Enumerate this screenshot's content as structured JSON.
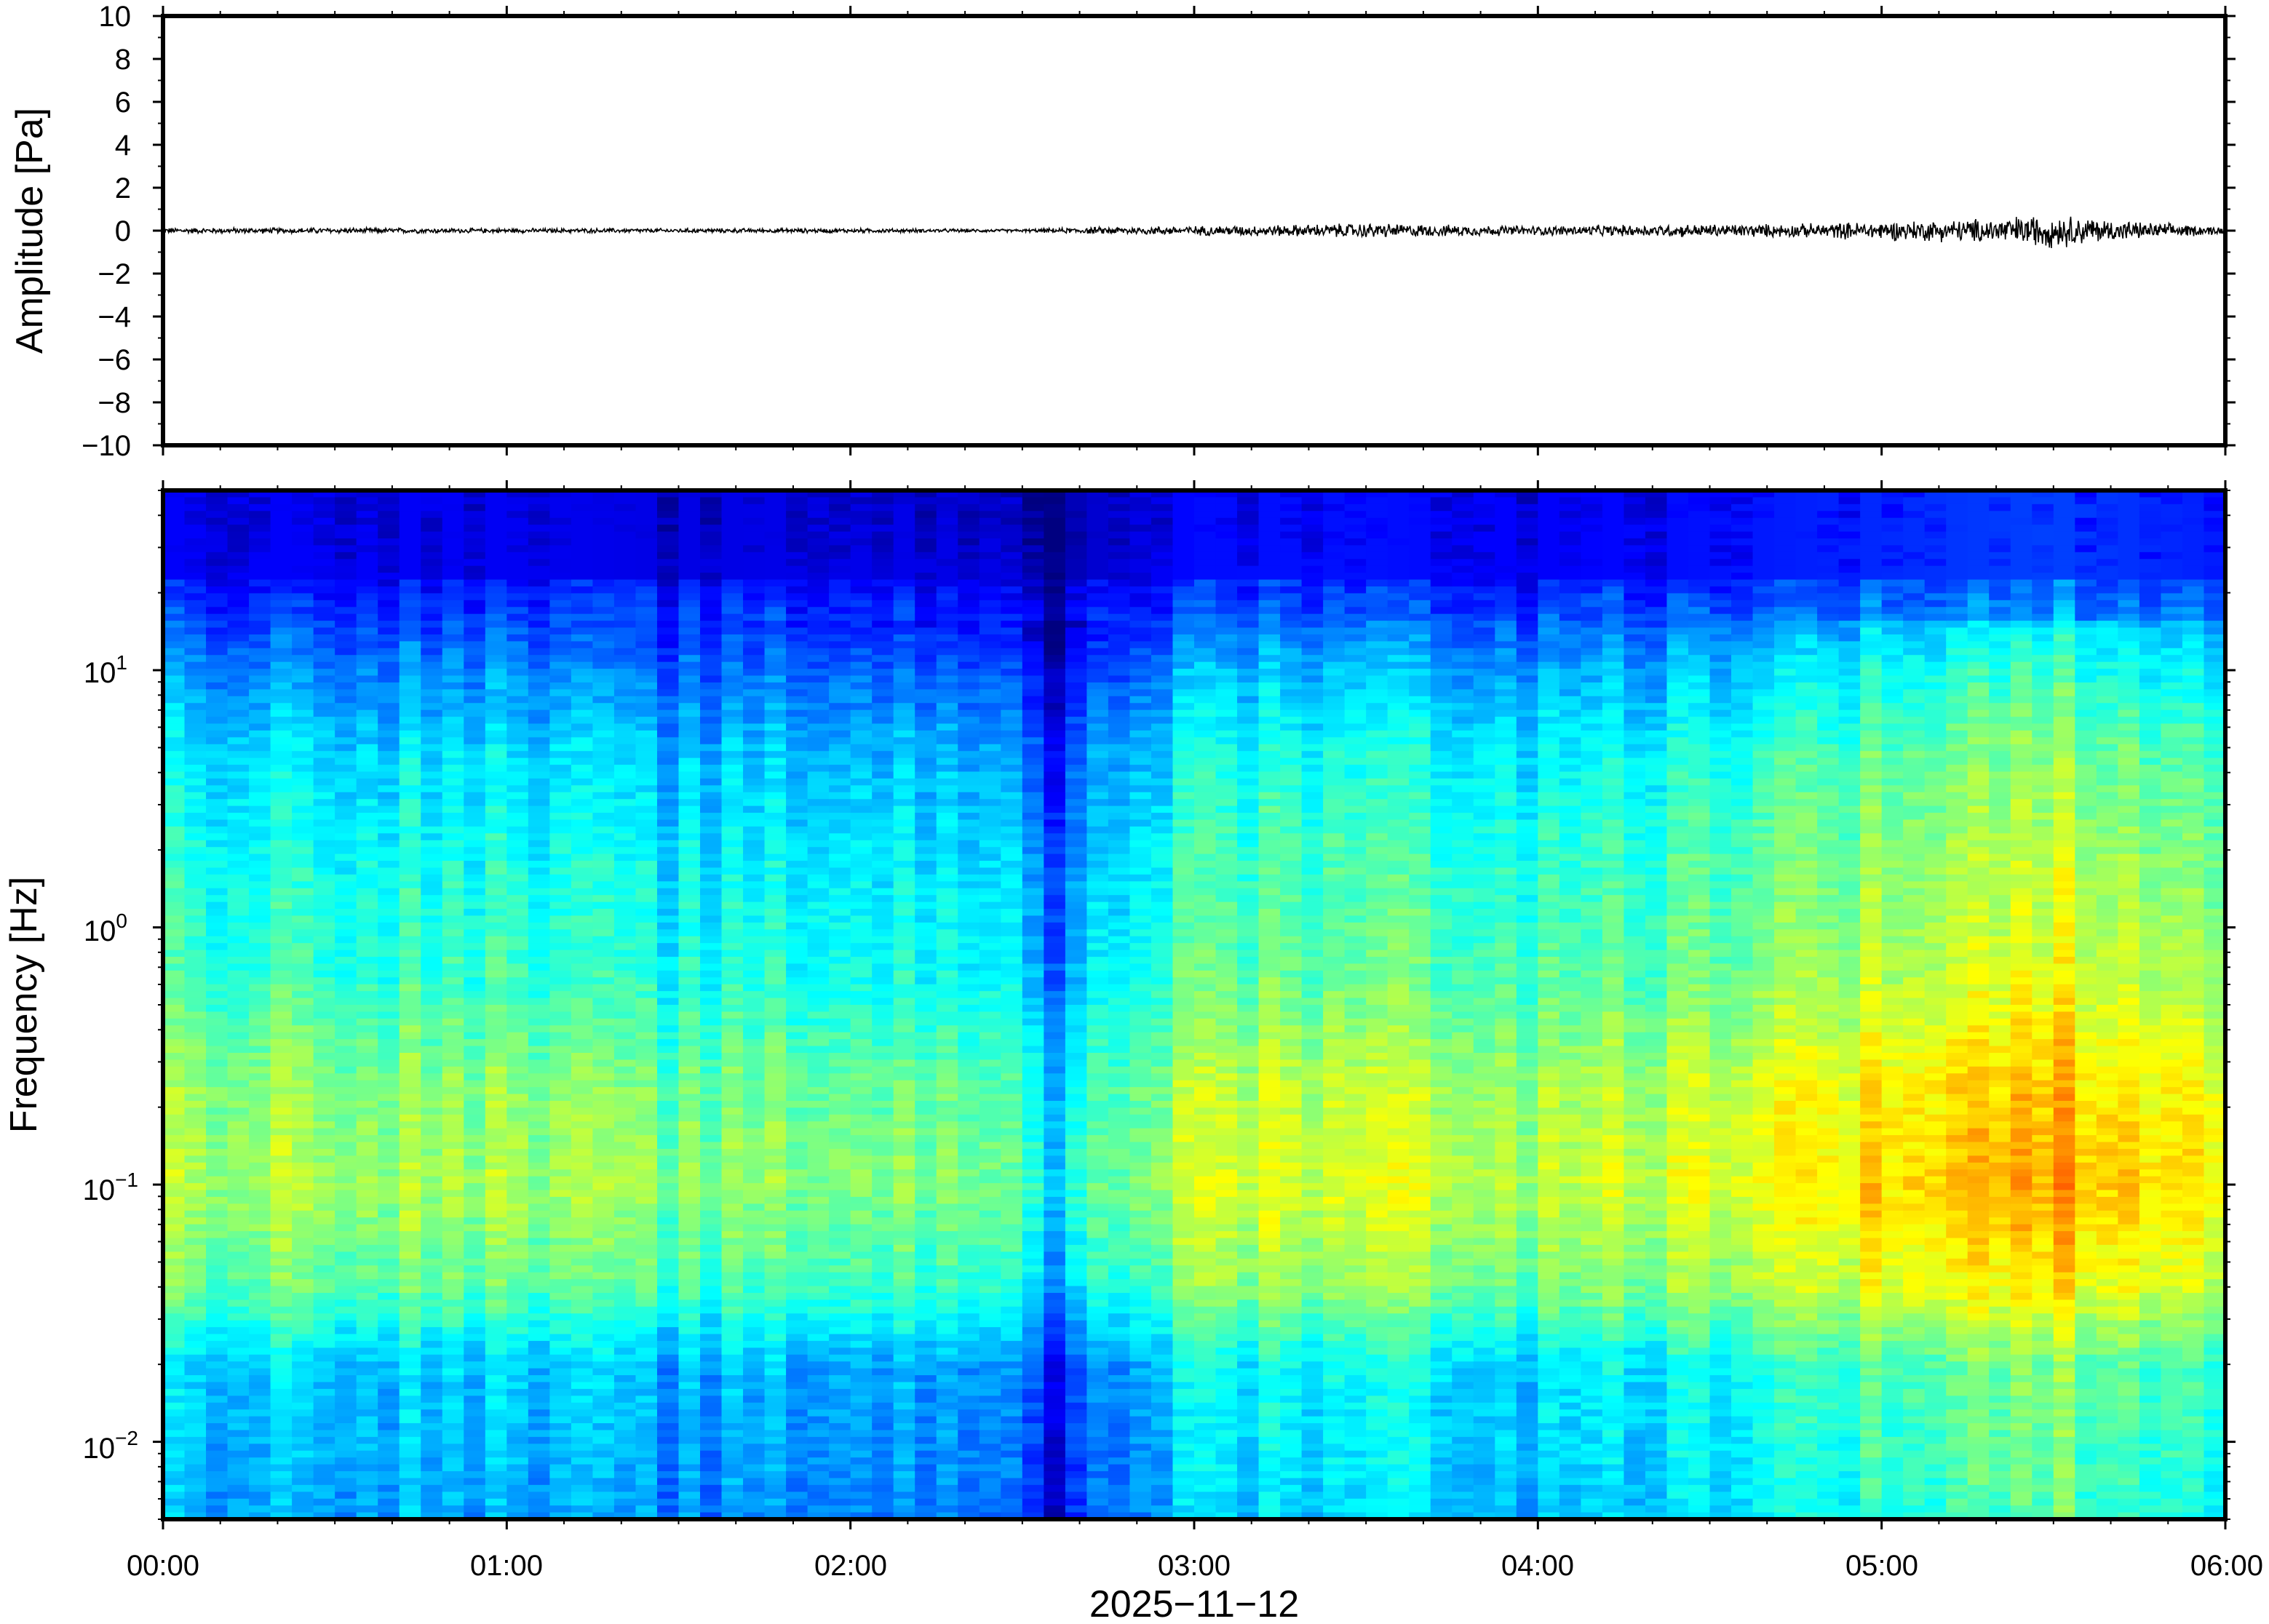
{
  "chart_data": [
    {
      "type": "line",
      "panel": "waveform",
      "ylabel": "Amplitude [Pa]",
      "ylim": [
        -10,
        10
      ],
      "y_ticks": [
        "10",
        "8",
        "6",
        "4",
        "2",
        "0",
        "−2",
        "−4",
        "−6",
        "−8",
        "−10"
      ],
      "xlim_hours": [
        0,
        6
      ],
      "grid": false,
      "series": [
        {
          "envelope_hours": [
            0,
            0.5,
            1,
            1.5,
            2,
            2.5,
            2.75,
            3,
            3.25,
            3.5,
            3.75,
            4,
            4.25,
            4.5,
            4.75,
            5,
            5.25,
            5.5,
            5.75,
            6
          ],
          "envelope_amplitude": [
            0.15,
            0.15,
            0.12,
            0.12,
            0.12,
            0.08,
            0.2,
            0.25,
            0.3,
            0.4,
            0.3,
            0.25,
            0.3,
            0.35,
            0.35,
            0.5,
            0.6,
            0.9,
            0.45,
            0.2
          ]
        }
      ]
    },
    {
      "type": "heatmap",
      "panel": "spectrogram",
      "ylabel": "Frequency [Hz]",
      "y_scale": "log",
      "ylim": [
        0.005,
        50
      ],
      "y_ticks": [
        {
          "base": "10",
          "exp": "1"
        },
        {
          "base": "10",
          "exp": "0"
        },
        {
          "base": "10",
          "exp": "−1"
        },
        {
          "base": "10",
          "exp": "−2"
        }
      ],
      "xlabel": "2025−11−12",
      "x_ticks": [
        "00:00",
        "01:00",
        "02:00",
        "03:00",
        "04:00",
        "05:00",
        "06:00"
      ],
      "xlim_hours": [
        0,
        6
      ],
      "colormap": "jet",
      "grid": false,
      "relative_power_profile": {
        "hours": [
          0,
          0.5,
          1,
          1.5,
          2,
          2.5,
          2.6,
          2.7,
          3,
          3.5,
          4,
          4.5,
          5,
          5.5,
          6
        ],
        "level": [
          0.45,
          0.45,
          0.43,
          0.38,
          0.4,
          0.38,
          0.15,
          0.3,
          0.5,
          0.52,
          0.45,
          0.52,
          0.6,
          0.68,
          0.55
        ]
      }
    }
  ],
  "colors": {
    "frame": "#000000",
    "trace": "#000000",
    "background": "#ffffff"
  }
}
